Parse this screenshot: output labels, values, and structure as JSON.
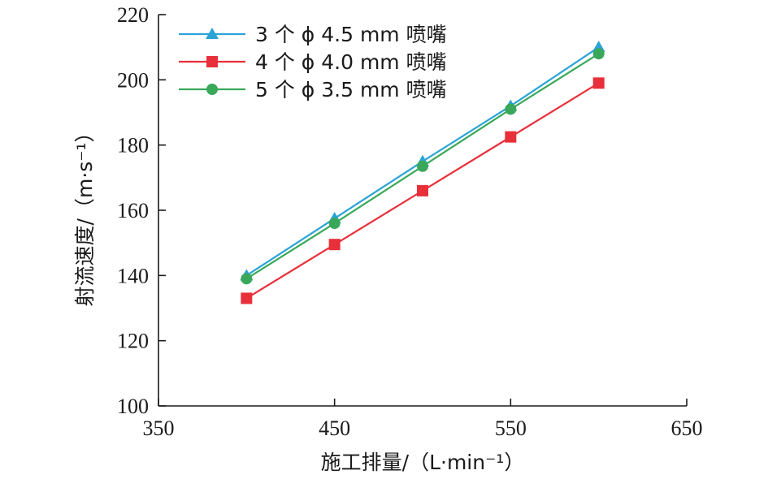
{
  "chart_data": {
    "type": "line",
    "xlabel": "施工排量/（L·min⁻¹）",
    "ylabel": "射流速度/（m·s⁻¹）",
    "xlim": [
      350,
      650
    ],
    "ylim": [
      100,
      220
    ],
    "xticks": [
      "350",
      "450",
      "550",
      "650"
    ],
    "yticks": [
      "100",
      "120",
      "140",
      "160",
      "180",
      "200",
      "220"
    ],
    "grid": false,
    "legend_position": "top-left",
    "x": [
      400,
      450,
      500,
      550,
      600
    ],
    "series": [
      {
        "name": "3 个 ϕ 4.5 mm 喷嘴",
        "color": "#2aa3d6",
        "marker": "triangle",
        "values": [
          140,
          157.5,
          175,
          192,
          210
        ]
      },
      {
        "name": "4 个 ϕ 4.0 mm 喷嘴",
        "color": "#e8303a",
        "marker": "square",
        "values": [
          133,
          149.5,
          166,
          182.5,
          199
        ]
      },
      {
        "name": "5 个 ϕ 3.5 mm 喷嘴",
        "color": "#3aa85a",
        "marker": "circle",
        "values": [
          139,
          156,
          173.5,
          191,
          208
        ]
      }
    ]
  }
}
